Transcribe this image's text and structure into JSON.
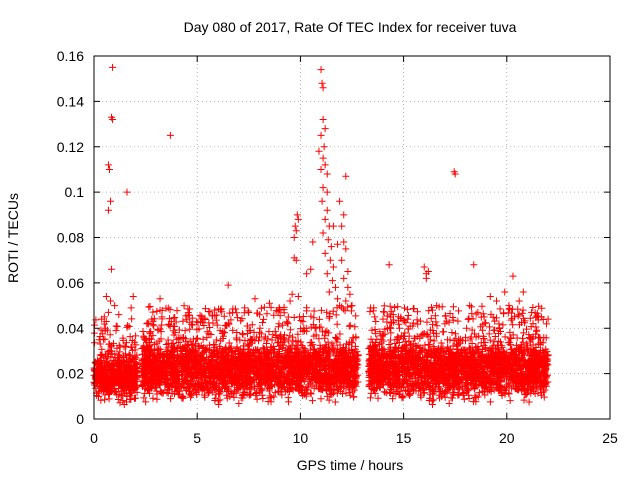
{
  "chart_data": {
    "type": "scatter",
    "title": "Day 080 of 2017, Rate Of TEC Index for receiver tuva",
    "xlabel": "GPS time / hours",
    "ylabel": "ROTI / TECUs",
    "xlim": [
      0,
      25
    ],
    "ylim": [
      0,
      0.16
    ],
    "xticks": [
      "0",
      "5",
      "10",
      "15",
      "20",
      "25"
    ],
    "yticks": [
      "0",
      "0.02",
      "0.04",
      "0.06",
      "0.08",
      "0.1",
      "0.12",
      "0.14",
      "0.16"
    ],
    "grid": true,
    "marker": "+",
    "color": "#ff0000",
    "dense_bands": [
      {
        "x": [
          0.0,
          2.1
        ],
        "y_low": 0.005,
        "y_high": 0.03
      },
      {
        "x": [
          2.3,
          12.8
        ],
        "y_low": 0.005,
        "y_high": 0.035
      },
      {
        "x": [
          13.3,
          22.0
        ],
        "y_low": 0.005,
        "y_high": 0.035
      }
    ],
    "points": [
      [
        0.9,
        0.155
      ],
      [
        0.85,
        0.133
      ],
      [
        0.9,
        0.132
      ],
      [
        0.7,
        0.112
      ],
      [
        0.75,
        0.11
      ],
      [
        0.8,
        0.096
      ],
      [
        0.7,
        0.092
      ],
      [
        1.6,
        0.1
      ],
      [
        3.7,
        0.125
      ],
      [
        0.85,
        0.066
      ],
      [
        0.6,
        0.054
      ],
      [
        0.8,
        0.052
      ],
      [
        1.0,
        0.05
      ],
      [
        1.9,
        0.054
      ],
      [
        1.8,
        0.049
      ],
      [
        0.5,
        0.045
      ],
      [
        0.7,
        0.047
      ],
      [
        1.2,
        0.046
      ],
      [
        3.2,
        0.053
      ],
      [
        2.8,
        0.044
      ],
      [
        6.5,
        0.059
      ],
      [
        7.3,
        0.049
      ],
      [
        7.8,
        0.053
      ],
      [
        8.5,
        0.051
      ],
      [
        9.0,
        0.048
      ],
      [
        9.6,
        0.055
      ],
      [
        9.9,
        0.054
      ],
      [
        9.5,
        0.052
      ],
      [
        9.7,
        0.071
      ],
      [
        9.8,
        0.07
      ],
      [
        9.75,
        0.085
      ],
      [
        9.8,
        0.083
      ],
      [
        9.85,
        0.09
      ],
      [
        9.9,
        0.088
      ],
      [
        9.7,
        0.08
      ],
      [
        10.6,
        0.078
      ],
      [
        10.3,
        0.064
      ],
      [
        10.5,
        0.066
      ],
      [
        11.0,
        0.154
      ],
      [
        11.05,
        0.148
      ],
      [
        11.1,
        0.146
      ],
      [
        11.1,
        0.132
      ],
      [
        11.2,
        0.128
      ],
      [
        11.0,
        0.125
      ],
      [
        11.15,
        0.12
      ],
      [
        10.9,
        0.118
      ],
      [
        11.1,
        0.115
      ],
      [
        11.2,
        0.112
      ],
      [
        11.0,
        0.11
      ],
      [
        11.3,
        0.108
      ],
      [
        11.1,
        0.102
      ],
      [
        11.3,
        0.1
      ],
      [
        11.05,
        0.096
      ],
      [
        11.3,
        0.092
      ],
      [
        11.2,
        0.088
      ],
      [
        11.4,
        0.085
      ],
      [
        11.1,
        0.082
      ],
      [
        11.35,
        0.079
      ],
      [
        11.5,
        0.076
      ],
      [
        11.2,
        0.073
      ],
      [
        11.45,
        0.07
      ],
      [
        11.6,
        0.067
      ],
      [
        11.3,
        0.064
      ],
      [
        11.55,
        0.061
      ],
      [
        11.7,
        0.058
      ],
      [
        11.4,
        0.056
      ],
      [
        11.8,
        0.053
      ],
      [
        11.9,
        0.05
      ],
      [
        12.0,
        0.085
      ],
      [
        12.1,
        0.09
      ],
      [
        12.2,
        0.107
      ],
      [
        11.9,
        0.096
      ],
      [
        12.1,
        0.078
      ],
      [
        12.2,
        0.075
      ],
      [
        12.0,
        0.07
      ],
      [
        12.3,
        0.065
      ],
      [
        12.1,
        0.062
      ],
      [
        12.3,
        0.058
      ],
      [
        12.4,
        0.055
      ],
      [
        12.2,
        0.052
      ],
      [
        12.5,
        0.05
      ],
      [
        11.8,
        0.077
      ],
      [
        11.6,
        0.085
      ],
      [
        13.4,
        0.049
      ],
      [
        14.3,
        0.068
      ],
      [
        13.6,
        0.045
      ],
      [
        14.0,
        0.044
      ],
      [
        14.5,
        0.046
      ],
      [
        15.2,
        0.044
      ],
      [
        16.0,
        0.067
      ],
      [
        16.1,
        0.064
      ],
      [
        16.2,
        0.065
      ],
      [
        16.1,
        0.062
      ],
      [
        16.6,
        0.05
      ],
      [
        16.4,
        0.048
      ],
      [
        17.5,
        0.108
      ],
      [
        17.45,
        0.109
      ],
      [
        18.4,
        0.068
      ],
      [
        18.2,
        0.05
      ],
      [
        18.6,
        0.047
      ],
      [
        19.2,
        0.054
      ],
      [
        19.5,
        0.052
      ],
      [
        19.9,
        0.056
      ],
      [
        20.1,
        0.05
      ],
      [
        20.3,
        0.063
      ],
      [
        20.6,
        0.052
      ],
      [
        20.8,
        0.056
      ],
      [
        21.2,
        0.047
      ],
      [
        22.0,
        0.044
      ],
      [
        18.9,
        0.045
      ],
      [
        21.5,
        0.045
      ],
      [
        14.8,
        0.04
      ],
      [
        17.0,
        0.042
      ]
    ]
  }
}
